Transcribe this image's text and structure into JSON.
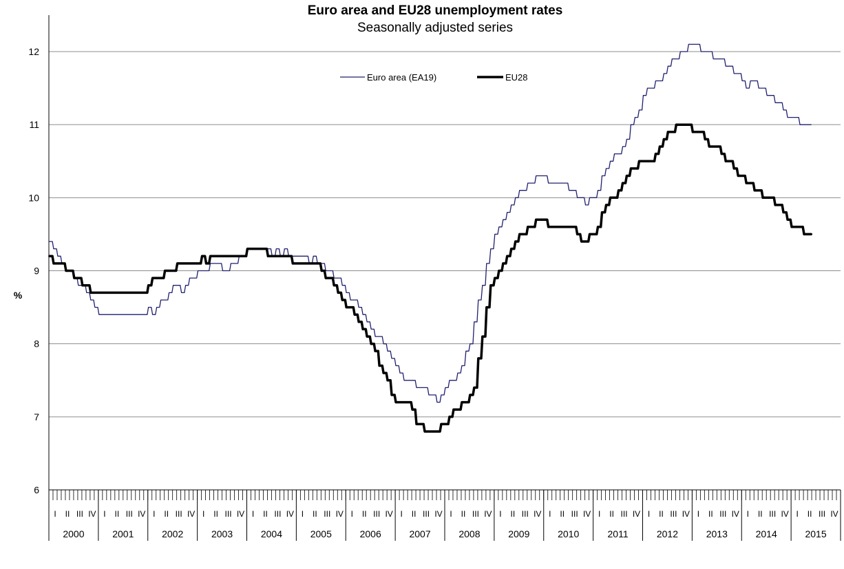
{
  "chart_data": {
    "type": "line",
    "title": "Euro area and EU28 unemployment rates",
    "subtitle": "Seasonally adjusted series",
    "ylabel": "%",
    "ylim": [
      6,
      12.5
    ],
    "yticks": [
      6,
      7,
      8,
      9,
      10,
      11,
      12
    ],
    "grid": true,
    "legend_position": "top-center",
    "x_unit": "month",
    "x_start": "2000-01",
    "years": [
      "2000",
      "2001",
      "2002",
      "2003",
      "2004",
      "2005",
      "2006",
      "2007",
      "2008",
      "2009",
      "2010",
      "2011",
      "2012",
      "2013",
      "2014",
      "2015"
    ],
    "quarter_labels": [
      "I",
      "II",
      "III",
      "IV"
    ],
    "series": [
      {
        "name": "Euro area (EA19)",
        "color": "#1f1f6e",
        "keypoints": [
          [
            "2000-01",
            9.4
          ],
          [
            "2000-05",
            9.0
          ],
          [
            "2000-07",
            8.9
          ],
          [
            "2000-11",
            8.6
          ],
          [
            "2001-01",
            8.4
          ],
          [
            "2001-12",
            8.4
          ],
          [
            "2002-01",
            8.5
          ],
          [
            "2002-02",
            8.4
          ],
          [
            "2002-06",
            8.7
          ],
          [
            "2002-08",
            8.8
          ],
          [
            "2002-09",
            8.7
          ],
          [
            "2003-01",
            9.0
          ],
          [
            "2003-06",
            9.1
          ],
          [
            "2003-07",
            9.0
          ],
          [
            "2003-12",
            9.2
          ],
          [
            "2004-02",
            9.3
          ],
          [
            "2004-06",
            9.3
          ],
          [
            "2004-07",
            9.2
          ],
          [
            "2004-08",
            9.3
          ],
          [
            "2004-09",
            9.2
          ],
          [
            "2004-10",
            9.3
          ],
          [
            "2004-11",
            9.2
          ],
          [
            "2005-03",
            9.2
          ],
          [
            "2005-04",
            9.1
          ],
          [
            "2005-05",
            9.2
          ],
          [
            "2005-06",
            9.1
          ],
          [
            "2005-09",
            9.0
          ],
          [
            "2005-12",
            8.8
          ],
          [
            "2006-06",
            8.3
          ],
          [
            "2006-12",
            7.8
          ],
          [
            "2007-03",
            7.5
          ],
          [
            "2007-07",
            7.4
          ],
          [
            "2007-09",
            7.3
          ],
          [
            "2007-11",
            7.2
          ],
          [
            "2008-01",
            7.4
          ],
          [
            "2008-03",
            7.5
          ],
          [
            "2008-05",
            7.7
          ],
          [
            "2008-07",
            8.0
          ],
          [
            "2008-09",
            8.6
          ],
          [
            "2008-12",
            9.3
          ],
          [
            "2009-01",
            9.5
          ],
          [
            "2009-06",
            10.0
          ],
          [
            "2009-08",
            10.1
          ],
          [
            "2009-12",
            10.3
          ],
          [
            "2010-02",
            10.2
          ],
          [
            "2010-06",
            10.2
          ],
          [
            "2010-07",
            10.1
          ],
          [
            "2010-09",
            10.0
          ],
          [
            "2010-11",
            9.9
          ],
          [
            "2011-01",
            10.0
          ],
          [
            "2011-04",
            10.4
          ],
          [
            "2011-08",
            10.7
          ],
          [
            "2011-11",
            11.1
          ],
          [
            "2012-02",
            11.5
          ],
          [
            "2012-03",
            11.5
          ],
          [
            "2012-10",
            12.0
          ],
          [
            "2013-01",
            12.1
          ],
          [
            "2013-04",
            12.0
          ],
          [
            "2013-06",
            11.9
          ],
          [
            "2013-10",
            11.8
          ],
          [
            "2014-02",
            11.5
          ],
          [
            "2014-03",
            11.6
          ],
          [
            "2014-06",
            11.5
          ],
          [
            "2014-09",
            11.3
          ],
          [
            "2014-11",
            11.2
          ],
          [
            "2015-03",
            11.0
          ],
          [
            "2015-05",
            11.0
          ]
        ]
      },
      {
        "name": "EU28",
        "color": "#000000",
        "keypoints": [
          [
            "2000-01",
            9.2
          ],
          [
            "2000-03",
            9.1
          ],
          [
            "2000-05",
            9.0
          ],
          [
            "2000-07",
            8.9
          ],
          [
            "2000-09",
            8.8
          ],
          [
            "2000-11",
            8.7
          ],
          [
            "2001-12",
            8.7
          ],
          [
            "2002-01",
            8.8
          ],
          [
            "2002-03",
            8.9
          ],
          [
            "2002-06",
            9.0
          ],
          [
            "2002-09",
            9.1
          ],
          [
            "2003-01",
            9.1
          ],
          [
            "2003-02",
            9.2
          ],
          [
            "2003-03",
            9.1
          ],
          [
            "2003-04",
            9.2
          ],
          [
            "2003-12",
            9.2
          ],
          [
            "2004-01",
            9.3
          ],
          [
            "2004-05",
            9.3
          ],
          [
            "2004-06",
            9.2
          ],
          [
            "2004-11",
            9.2
          ],
          [
            "2004-12",
            9.1
          ],
          [
            "2005-06",
            9.1
          ],
          [
            "2005-08",
            8.9
          ],
          [
            "2005-10",
            8.8
          ],
          [
            "2006-05",
            8.2
          ],
          [
            "2006-08",
            7.9
          ],
          [
            "2006-09",
            7.7
          ],
          [
            "2007-01",
            7.2
          ],
          [
            "2007-04",
            7.2
          ],
          [
            "2007-06",
            6.9
          ],
          [
            "2007-07",
            6.9
          ],
          [
            "2007-08",
            6.8
          ],
          [
            "2007-11",
            6.8
          ],
          [
            "2008-02",
            7.0
          ],
          [
            "2008-04",
            7.1
          ],
          [
            "2008-06",
            7.2
          ],
          [
            "2008-08",
            7.4
          ],
          [
            "2008-12",
            8.8
          ],
          [
            "2009-06",
            9.4
          ],
          [
            "2009-09",
            9.6
          ],
          [
            "2009-11",
            9.7
          ],
          [
            "2010-01",
            9.7
          ],
          [
            "2010-02",
            9.6
          ],
          [
            "2010-07",
            9.6
          ],
          [
            "2010-09",
            9.5
          ],
          [
            "2010-10",
            9.4
          ],
          [
            "2010-11",
            9.4
          ],
          [
            "2011-01",
            9.5
          ],
          [
            "2011-05",
            10.0
          ],
          [
            "2011-06",
            10.0
          ],
          [
            "2011-10",
            10.4
          ],
          [
            "2012-01",
            10.5
          ],
          [
            "2012-03",
            10.5
          ],
          [
            "2012-06",
            10.8
          ],
          [
            "2012-09",
            11.0
          ],
          [
            "2012-12",
            11.0
          ],
          [
            "2013-01",
            10.9
          ],
          [
            "2013-03",
            10.9
          ],
          [
            "2013-05",
            10.7
          ],
          [
            "2013-07",
            10.7
          ],
          [
            "2013-12",
            10.3
          ],
          [
            "2014-03",
            10.2
          ],
          [
            "2014-05",
            10.1
          ],
          [
            "2014-06",
            10.0
          ],
          [
            "2014-08",
            10.0
          ],
          [
            "2014-12",
            9.7
          ],
          [
            "2015-02",
            9.6
          ],
          [
            "2015-03",
            9.6
          ],
          [
            "2015-04",
            9.5
          ],
          [
            "2015-05",
            9.5
          ]
        ]
      }
    ]
  }
}
